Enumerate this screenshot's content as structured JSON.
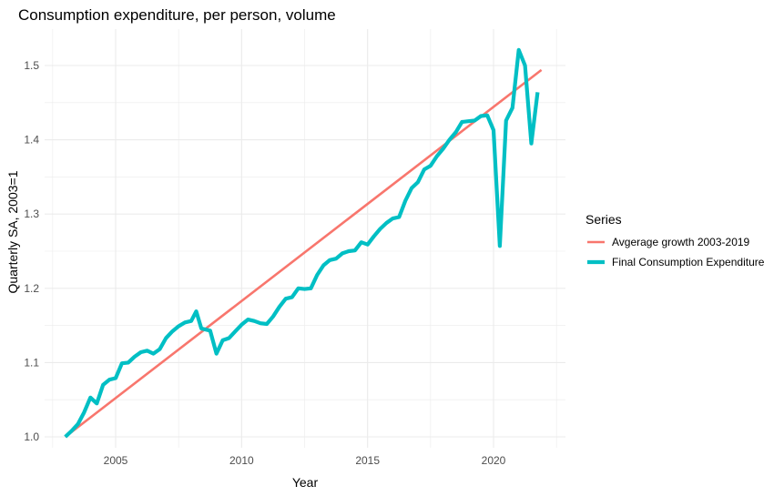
{
  "chart_data": {
    "type": "line",
    "title": "Consumption expenditure, per person, volume",
    "xlabel": "Year",
    "ylabel": "Quarterly SA, 2003=1",
    "xlim": [
      2002.3,
      2023.0
    ],
    "ylim": [
      0.98,
      1.555
    ],
    "x_ticks": [
      2005,
      2010,
      2015,
      2020
    ],
    "x_tick_labels": [
      "2005",
      "2010",
      "2015",
      "2020"
    ],
    "x_minor_ticks": [
      2002.5,
      2007.5,
      2012.5,
      2017.5,
      2022.5
    ],
    "y_ticks": [
      1.0,
      1.1,
      1.2,
      1.3,
      1.4,
      1.5
    ],
    "y_tick_labels": [
      "1.0",
      "1.1",
      "1.2",
      "1.3",
      "1.4",
      "1.5"
    ],
    "y_minor_ticks": [
      1.05,
      1.15,
      1.25,
      1.35,
      1.45
    ],
    "grid": true,
    "legend": {
      "title": "Series",
      "position": "right"
    },
    "series": [
      {
        "name": "Avgerage growth 2003-2019",
        "color": "#F8766D",
        "points": [
          [
            2003.0,
            1.0
          ],
          [
            2021.9,
            1.494
          ]
        ]
      },
      {
        "name": "Final Consumption Expenditure",
        "color": "#00BFC4",
        "points": [
          [
            2003.0,
            1.0
          ],
          [
            2003.25,
            1.008
          ],
          [
            2003.5,
            1.017
          ],
          [
            2003.75,
            1.033
          ],
          [
            2004.0,
            1.053
          ],
          [
            2004.25,
            1.045
          ],
          [
            2004.5,
            1.07
          ],
          [
            2004.75,
            1.077
          ],
          [
            2005.0,
            1.079
          ],
          [
            2005.25,
            1.099
          ],
          [
            2005.5,
            1.1
          ],
          [
            2005.75,
            1.108
          ],
          [
            2006.0,
            1.114
          ],
          [
            2006.25,
            1.116
          ],
          [
            2006.5,
            1.112
          ],
          [
            2006.75,
            1.118
          ],
          [
            2007.0,
            1.133
          ],
          [
            2007.25,
            1.142
          ],
          [
            2007.5,
            1.149
          ],
          [
            2007.75,
            1.154
          ],
          [
            2008.0,
            1.156
          ],
          [
            2008.2,
            1.169
          ],
          [
            2008.4,
            1.146
          ],
          [
            2008.75,
            1.143
          ],
          [
            2009.0,
            1.112
          ],
          [
            2009.25,
            1.13
          ],
          [
            2009.5,
            1.133
          ],
          [
            2009.75,
            1.142
          ],
          [
            2010.0,
            1.151
          ],
          [
            2010.25,
            1.158
          ],
          [
            2010.5,
            1.156
          ],
          [
            2010.75,
            1.153
          ],
          [
            2011.0,
            1.152
          ],
          [
            2011.25,
            1.162
          ],
          [
            2011.5,
            1.175
          ],
          [
            2011.75,
            1.186
          ],
          [
            2012.0,
            1.188
          ],
          [
            2012.25,
            1.2
          ],
          [
            2012.5,
            1.199
          ],
          [
            2012.75,
            1.2
          ],
          [
            2013.0,
            1.218
          ],
          [
            2013.25,
            1.231
          ],
          [
            2013.5,
            1.238
          ],
          [
            2013.75,
            1.24
          ],
          [
            2014.0,
            1.247
          ],
          [
            2014.25,
            1.25
          ],
          [
            2014.5,
            1.251
          ],
          [
            2014.75,
            1.262
          ],
          [
            2015.0,
            1.259
          ],
          [
            2015.25,
            1.27
          ],
          [
            2015.5,
            1.28
          ],
          [
            2015.75,
            1.288
          ],
          [
            2016.0,
            1.294
          ],
          [
            2016.25,
            1.296
          ],
          [
            2016.5,
            1.318
          ],
          [
            2016.75,
            1.335
          ],
          [
            2017.0,
            1.343
          ],
          [
            2017.25,
            1.36
          ],
          [
            2017.5,
            1.365
          ],
          [
            2017.75,
            1.378
          ],
          [
            2018.0,
            1.388
          ],
          [
            2018.25,
            1.4
          ],
          [
            2018.5,
            1.41
          ],
          [
            2018.75,
            1.424
          ],
          [
            2019.0,
            1.425
          ],
          [
            2019.25,
            1.426
          ],
          [
            2019.5,
            1.432
          ],
          [
            2019.75,
            1.433
          ],
          [
            2020.0,
            1.413
          ],
          [
            2020.25,
            1.257
          ],
          [
            2020.5,
            1.426
          ],
          [
            2020.75,
            1.443
          ],
          [
            2021.0,
            1.521
          ],
          [
            2021.25,
            1.5
          ],
          [
            2021.5,
            1.395
          ],
          [
            2021.75,
            1.464
          ]
        ]
      }
    ]
  }
}
